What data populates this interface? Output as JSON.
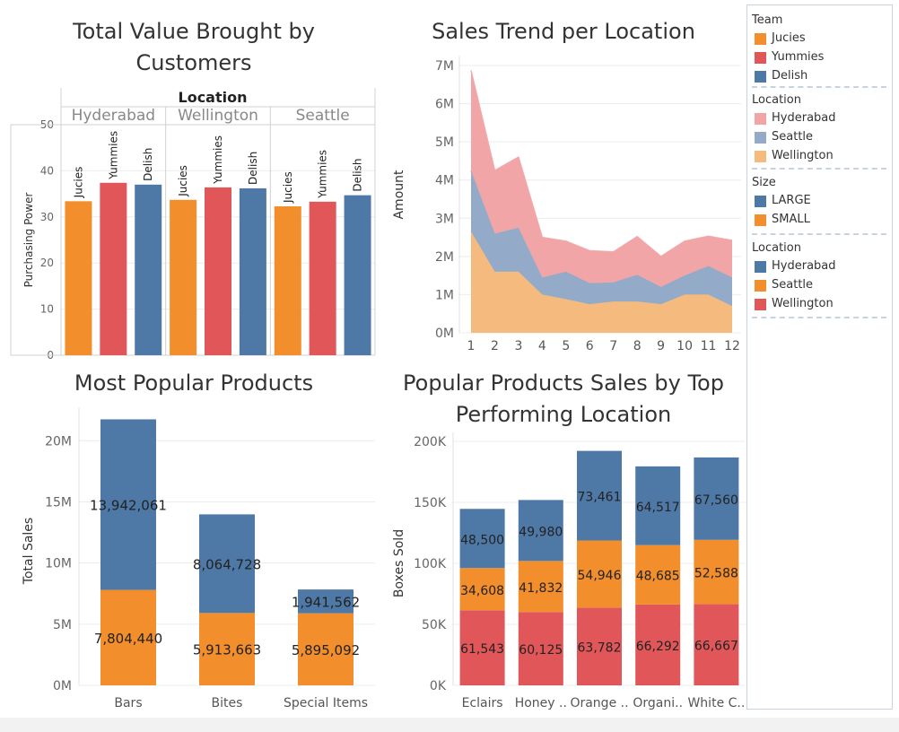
{
  "titles": {
    "c1": "Total Value Brought by Customers",
    "c2": "Sales Trend per Location",
    "c3": "Most Popular Products",
    "c4": "Popular Products Sales by Top Performing Location"
  },
  "colors": {
    "jucies": "#f28e2b",
    "yummies": "#e15759",
    "delish": "#4e79a7",
    "area_hyderabad": "#f1a5a7",
    "area_seattle": "#93abc9",
    "area_wellington": "#f5bb7e",
    "grid": "#ececec"
  },
  "legend": [
    {
      "title": "Team",
      "items": [
        {
          "label": "Jucies",
          "color": "#f28e2b"
        },
        {
          "label": "Yummies",
          "color": "#e15759"
        },
        {
          "label": "Delish",
          "color": "#4e79a7"
        }
      ]
    },
    {
      "title": "Location",
      "items": [
        {
          "label": "Hyderabad",
          "color": "#f1a5a7"
        },
        {
          "label": "Seattle",
          "color": "#93abc9"
        },
        {
          "label": "Wellington",
          "color": "#f5bb7e"
        }
      ]
    },
    {
      "title": "Size",
      "items": [
        {
          "label": "LARGE",
          "color": "#4e79a7"
        },
        {
          "label": "SMALL",
          "color": "#f28e2b"
        }
      ]
    },
    {
      "title": "Location",
      "items": [
        {
          "label": "Hyderabad",
          "color": "#4e79a7"
        },
        {
          "label": "Seattle",
          "color": "#f28e2b"
        },
        {
          "label": "Wellington",
          "color": "#e15759"
        }
      ]
    }
  ],
  "chart_data": [
    {
      "type": "bar",
      "title": "Total Value Brought by Customers",
      "header": "Location",
      "groups": [
        "Hyderabad",
        "Wellington",
        "Seattle"
      ],
      "categories": [
        "Jucies",
        "Yummies",
        "Delish"
      ],
      "values": [
        [
          33.4,
          37.4,
          37.0
        ],
        [
          33.7,
          36.4,
          36.2
        ],
        [
          32.3,
          33.3,
          34.7
        ]
      ],
      "ylabel": "Purchasing Power",
      "ylim": [
        0,
        50
      ],
      "yticks": [
        0,
        10,
        20,
        30,
        40,
        50
      ]
    },
    {
      "type": "area",
      "title": "Sales Trend per Location",
      "x": [
        1,
        2,
        3,
        4,
        5,
        6,
        7,
        8,
        9,
        10,
        11,
        12
      ],
      "series": [
        {
          "name": "Wellington",
          "values": [
            2.65,
            1.6,
            1.6,
            1.0,
            0.88,
            0.75,
            0.82,
            0.82,
            0.75,
            1.0,
            1.0,
            0.7
          ]
        },
        {
          "name": "Seattle",
          "values": [
            1.6,
            1.0,
            1.15,
            0.45,
            0.72,
            0.55,
            0.5,
            0.7,
            0.45,
            0.5,
            0.75,
            0.75
          ]
        },
        {
          "name": "Hyderabad",
          "values": [
            2.62,
            1.65,
            1.85,
            1.05,
            0.8,
            0.85,
            0.8,
            1.0,
            0.8,
            0.9,
            0.78,
            0.97
          ]
        }
      ],
      "ylabel": "Amount",
      "ylim": [
        0,
        7
      ],
      "ytick_labels": [
        "0M",
        "1M",
        "2M",
        "3M",
        "4M",
        "5M",
        "6M",
        "7M"
      ]
    },
    {
      "type": "bar",
      "title": "Most Popular Products",
      "stacked": true,
      "categories": [
        "Bars",
        "Bites",
        "Special Items"
      ],
      "series": [
        {
          "name": "SMALL",
          "values": [
            7804440,
            5913663,
            5895092
          ],
          "labels": [
            "7,804,440",
            "5,913,663",
            "5,895,092"
          ]
        },
        {
          "name": "LARGE",
          "values": [
            13942061,
            8064728,
            1941562
          ],
          "labels": [
            "13,942,061",
            "8,064,728",
            "1,941,562"
          ]
        }
      ],
      "ylabel": "Total Sales",
      "ylim": [
        0,
        22000000
      ],
      "yticks": [
        0,
        5000000,
        10000000,
        15000000,
        20000000
      ],
      "ytick_labels": [
        "0M",
        "5M",
        "10M",
        "15M",
        "20M"
      ]
    },
    {
      "type": "bar",
      "title": "Popular Products Sales by Top Performing Location",
      "stacked": true,
      "categories": [
        "Eclairs",
        "Honey ..",
        "Orange ..",
        "Organi..",
        "White C.."
      ],
      "series": [
        {
          "name": "Wellington",
          "values": [
            61543,
            60125,
            63782,
            66292,
            66667
          ],
          "labels": [
            "61,543",
            "60,125",
            "63,782",
            "66,292",
            "66,667"
          ]
        },
        {
          "name": "Seattle",
          "values": [
            34608,
            41832,
            54946,
            48685,
            52588
          ],
          "labels": [
            "34,608",
            "41,832",
            "54,946",
            "48,685",
            "52,588"
          ]
        },
        {
          "name": "Hyderabad",
          "values": [
            48500,
            49980,
            73461,
            64517,
            67560
          ],
          "labels": [
            "48,500",
            "49,980",
            "73,461",
            "64,517",
            "67,560"
          ]
        }
      ],
      "ylabel": "Boxes Sold",
      "ylim": [
        0,
        200000
      ],
      "yticks": [
        0,
        50000,
        100000,
        150000,
        200000
      ],
      "ytick_labels": [
        "0K",
        "50K",
        "100K",
        "150K",
        "200K"
      ]
    }
  ]
}
